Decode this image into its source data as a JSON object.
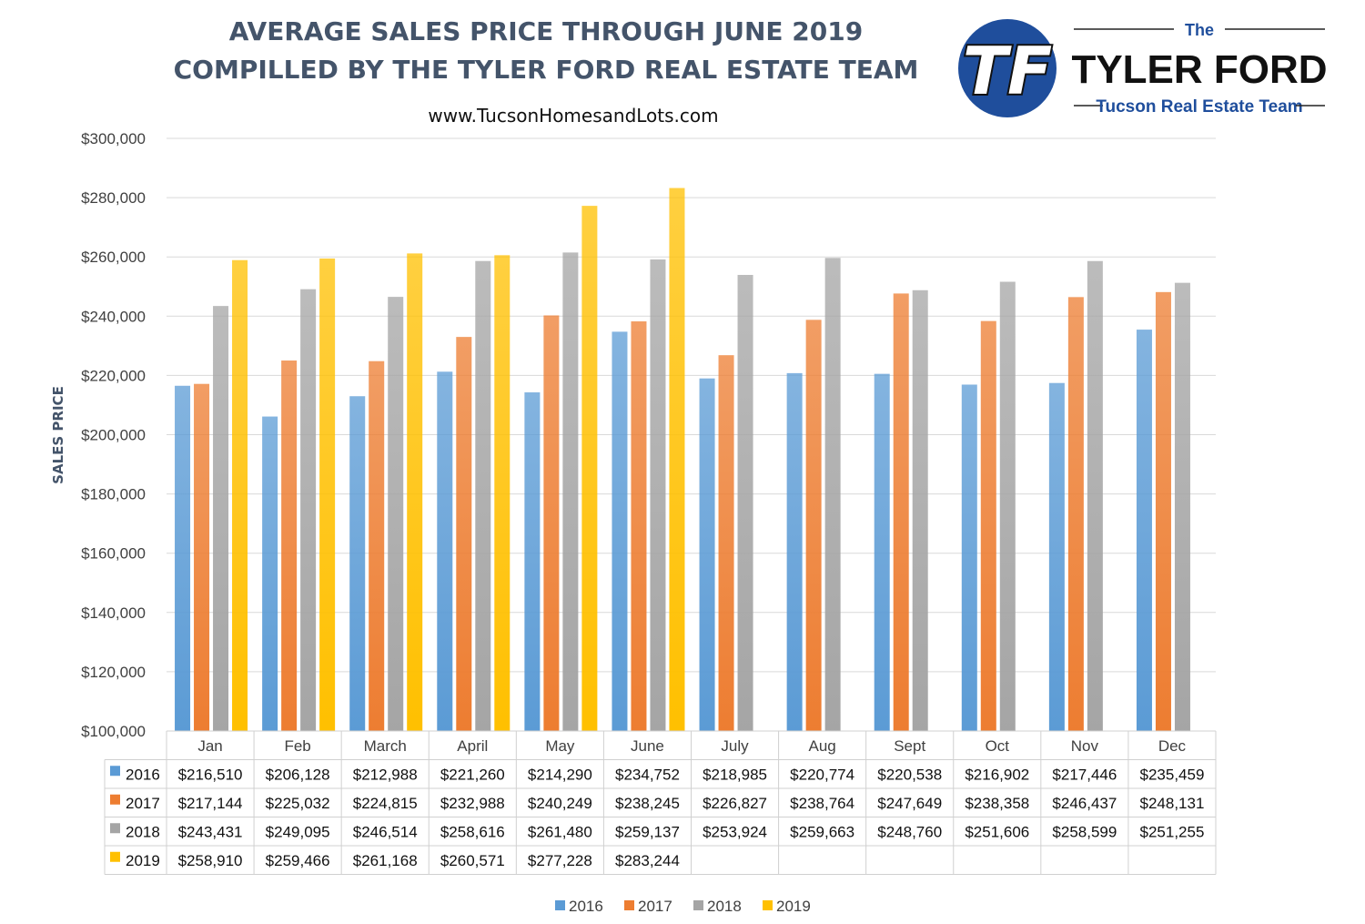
{
  "header": {
    "title_line1": "AVERAGE SALES PRICE THROUGH JUNE 2019",
    "title_line2": "COMPILLED BY THE TYLER FORD REAL ESTATE TEAM",
    "website": "www.TucsonHomesandLots.com"
  },
  "logo": {
    "monogram": "TF",
    "the": "The",
    "name": "TYLER FORD",
    "tagline": "Tucson Real Estate Team"
  },
  "chart_data": {
    "type": "bar",
    "title": "AVERAGE SALES PRICE THROUGH JUNE 2019",
    "xlabel": "",
    "ylabel": "SALES PRICE",
    "ylim": [
      100000,
      300000
    ],
    "y_ticks": [
      "$100,000",
      "$120,000",
      "$140,000",
      "$160,000",
      "$180,000",
      "$200,000",
      "$220,000",
      "$240,000",
      "$260,000",
      "$280,000",
      "$300,000"
    ],
    "grid": true,
    "legend_position": "bottom",
    "data_table": true,
    "categories": [
      "Jan",
      "Feb",
      "March",
      "April",
      "May",
      "June",
      "July",
      "Aug",
      "Sept",
      "Oct",
      "Nov",
      "Dec"
    ],
    "series": [
      {
        "name": "2016",
        "color": "#5b9bd5",
        "values": [
          216510,
          206128,
          212988,
          221260,
          214290,
          234752,
          218985,
          220774,
          220538,
          216902,
          217446,
          235459
        ],
        "labels": [
          "$216,510",
          "$206,128",
          "$212,988",
          "$221,260",
          "$214,290",
          "$234,752",
          "$218,985",
          "$220,774",
          "$220,538",
          "$216,902",
          "$217,446",
          "$235,459"
        ]
      },
      {
        "name": "2017",
        "color": "#ed7d31",
        "values": [
          217144,
          225032,
          224815,
          232988,
          240249,
          238245,
          226827,
          238764,
          247649,
          238358,
          246437,
          248131
        ],
        "labels": [
          "$217,144",
          "$225,032",
          "$224,815",
          "$232,988",
          "$240,249",
          "$238,245",
          "$226,827",
          "$238,764",
          "$247,649",
          "$238,358",
          "$246,437",
          "$248,131"
        ]
      },
      {
        "name": "2018",
        "color": "#a5a5a5",
        "values": [
          243431,
          249095,
          246514,
          258616,
          261480,
          259137,
          253924,
          259663,
          248760,
          251606,
          258599,
          251255
        ],
        "labels": [
          "$243,431",
          "$249,095",
          "$246,514",
          "$258,616",
          "$261,480",
          "$259,137",
          "$253,924",
          "$259,663",
          "$248,760",
          "$251,606",
          "$258,599",
          "$251,255"
        ]
      },
      {
        "name": "2019",
        "color": "#ffc000",
        "values": [
          258910,
          259466,
          261168,
          260571,
          277228,
          283244,
          null,
          null,
          null,
          null,
          null,
          null
        ],
        "labels": [
          "$258,910",
          "$259,466",
          "$261,168",
          "$260,571",
          "$277,228",
          "$283,244",
          "",
          "",
          "",
          "",
          "",
          ""
        ]
      }
    ]
  }
}
